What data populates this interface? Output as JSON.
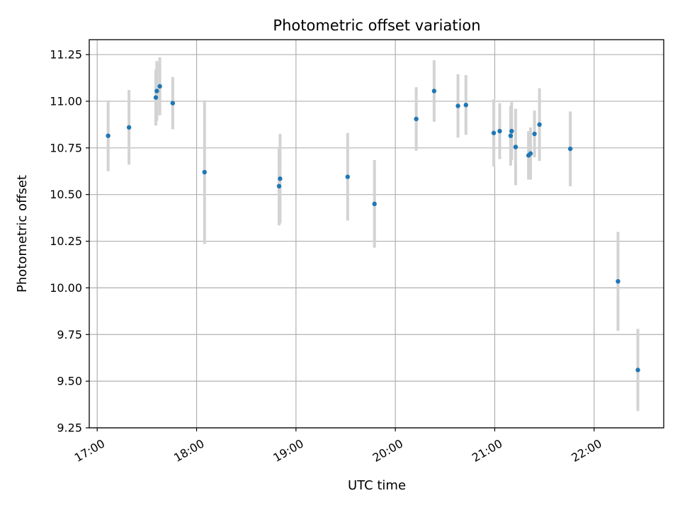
{
  "chart_data": {
    "type": "scatter",
    "title": "Photometric offset variation",
    "xlabel": "UTC time",
    "ylabel": "Photometric offset",
    "xlim": [
      16.92,
      22.7
    ],
    "ylim": [
      9.25,
      11.33
    ],
    "grid": true,
    "legend": "none",
    "x_ticks": [
      {
        "value": 17,
        "label": "17:00"
      },
      {
        "value": 18,
        "label": "18:00"
      },
      {
        "value": 19,
        "label": "19:00"
      },
      {
        "value": 20,
        "label": "20:00"
      },
      {
        "value": 21,
        "label": "21:00"
      },
      {
        "value": 22,
        "label": "22:00"
      }
    ],
    "y_ticks": [
      {
        "value": 9.25,
        "label": "9.25"
      },
      {
        "value": 9.5,
        "label": "9.50"
      },
      {
        "value": 9.75,
        "label": "9.75"
      },
      {
        "value": 10.0,
        "label": "10.00"
      },
      {
        "value": 10.25,
        "label": "10.25"
      },
      {
        "value": 10.5,
        "label": "10.50"
      },
      {
        "value": 10.75,
        "label": "10.75"
      },
      {
        "value": 11.0,
        "label": "11.00"
      },
      {
        "value": 11.25,
        "label": "11.25"
      }
    ],
    "point_color": "#1f77b4",
    "errorbar_color": "#d3d3d3",
    "series": [
      {
        "name": "photometric offset",
        "points": [
          {
            "x": 17.11,
            "y": 10.815,
            "err": 0.19
          },
          {
            "x": 17.32,
            "y": 10.86,
            "err": 0.2
          },
          {
            "x": 17.59,
            "y": 11.02,
            "err": 0.15
          },
          {
            "x": 17.6,
            "y": 11.055,
            "err": 0.16
          },
          {
            "x": 17.63,
            "y": 11.08,
            "err": 0.155
          },
          {
            "x": 17.76,
            "y": 10.99,
            "err": 0.14
          },
          {
            "x": 18.08,
            "y": 10.62,
            "err": 0.385
          },
          {
            "x": 18.83,
            "y": 10.545,
            "err": 0.21
          },
          {
            "x": 18.84,
            "y": 10.585,
            "err": 0.24
          },
          {
            "x": 19.52,
            "y": 10.595,
            "err": 0.235
          },
          {
            "x": 19.79,
            "y": 10.45,
            "err": 0.235
          },
          {
            "x": 20.21,
            "y": 10.905,
            "err": 0.17
          },
          {
            "x": 20.39,
            "y": 11.055,
            "err": 0.165
          },
          {
            "x": 20.63,
            "y": 10.975,
            "err": 0.17
          },
          {
            "x": 20.71,
            "y": 10.98,
            "err": 0.16
          },
          {
            "x": 20.99,
            "y": 10.83,
            "err": 0.18
          },
          {
            "x": 21.05,
            "y": 10.84,
            "err": 0.15
          },
          {
            "x": 21.16,
            "y": 10.815,
            "err": 0.16
          },
          {
            "x": 21.17,
            "y": 10.84,
            "err": 0.155
          },
          {
            "x": 21.21,
            "y": 10.755,
            "err": 0.205
          },
          {
            "x": 21.34,
            "y": 10.71,
            "err": 0.13
          },
          {
            "x": 21.36,
            "y": 10.72,
            "err": 0.14
          },
          {
            "x": 21.4,
            "y": 10.825,
            "err": 0.125
          },
          {
            "x": 21.45,
            "y": 10.875,
            "err": 0.195
          },
          {
            "x": 21.76,
            "y": 10.745,
            "err": 0.2
          },
          {
            "x": 22.24,
            "y": 10.035,
            "err": 0.265
          },
          {
            "x": 22.44,
            "y": 9.56,
            "err": 0.22
          }
        ]
      }
    ]
  }
}
